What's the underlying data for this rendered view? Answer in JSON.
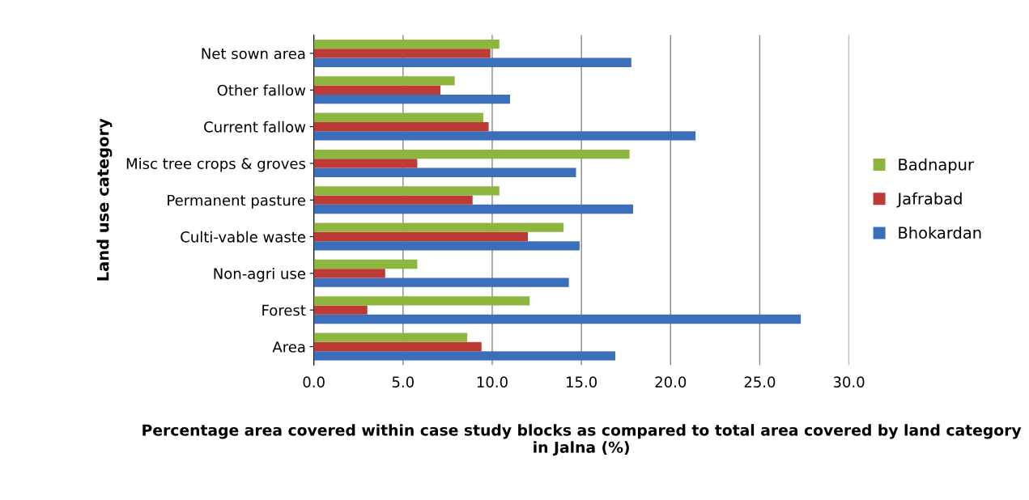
{
  "chart_data": {
    "type": "bar",
    "orientation": "horizontal",
    "xlabel": "Percentage area covered within case study blocks as compared to total area covered by land category in Jalna (%)",
    "ylabel": "Land use category",
    "categories": [
      "Net sown area",
      "Other fallow",
      "Current fallow",
      "Misc tree crops & groves",
      "Permanent pasture",
      "Culti-vable waste",
      "Non-agri use",
      "Forest",
      "Area"
    ],
    "series": [
      {
        "name": "Bhokardan",
        "color": "#3c6fba",
        "values": [
          17.8,
          11.0,
          21.4,
          14.7,
          17.9,
          14.9,
          14.3,
          27.3,
          16.9
        ]
      },
      {
        "name": "Jafrabad",
        "color": "#be3a36",
        "values": [
          9.9,
          7.1,
          9.8,
          5.8,
          8.9,
          12.0,
          4.0,
          3.0,
          9.4
        ]
      },
      {
        "name": "Badnapur",
        "color": "#8db63f",
        "values": [
          10.4,
          7.9,
          9.5,
          17.7,
          10.4,
          14.0,
          5.8,
          12.1,
          8.6
        ]
      }
    ],
    "xlim": [
      0,
      30
    ],
    "xticks": [
      {
        "value": 0,
        "label": "0.0"
      },
      {
        "value": 5,
        "label": "5.0"
      },
      {
        "value": 10,
        "label": "10.0"
      },
      {
        "value": 15,
        "label": "15.0"
      },
      {
        "value": 20,
        "label": "20.0"
      },
      {
        "value": 25,
        "label": "25.0"
      },
      {
        "value": 30,
        "label": "30.0"
      }
    ],
    "grid": "x",
    "legend": "right"
  }
}
